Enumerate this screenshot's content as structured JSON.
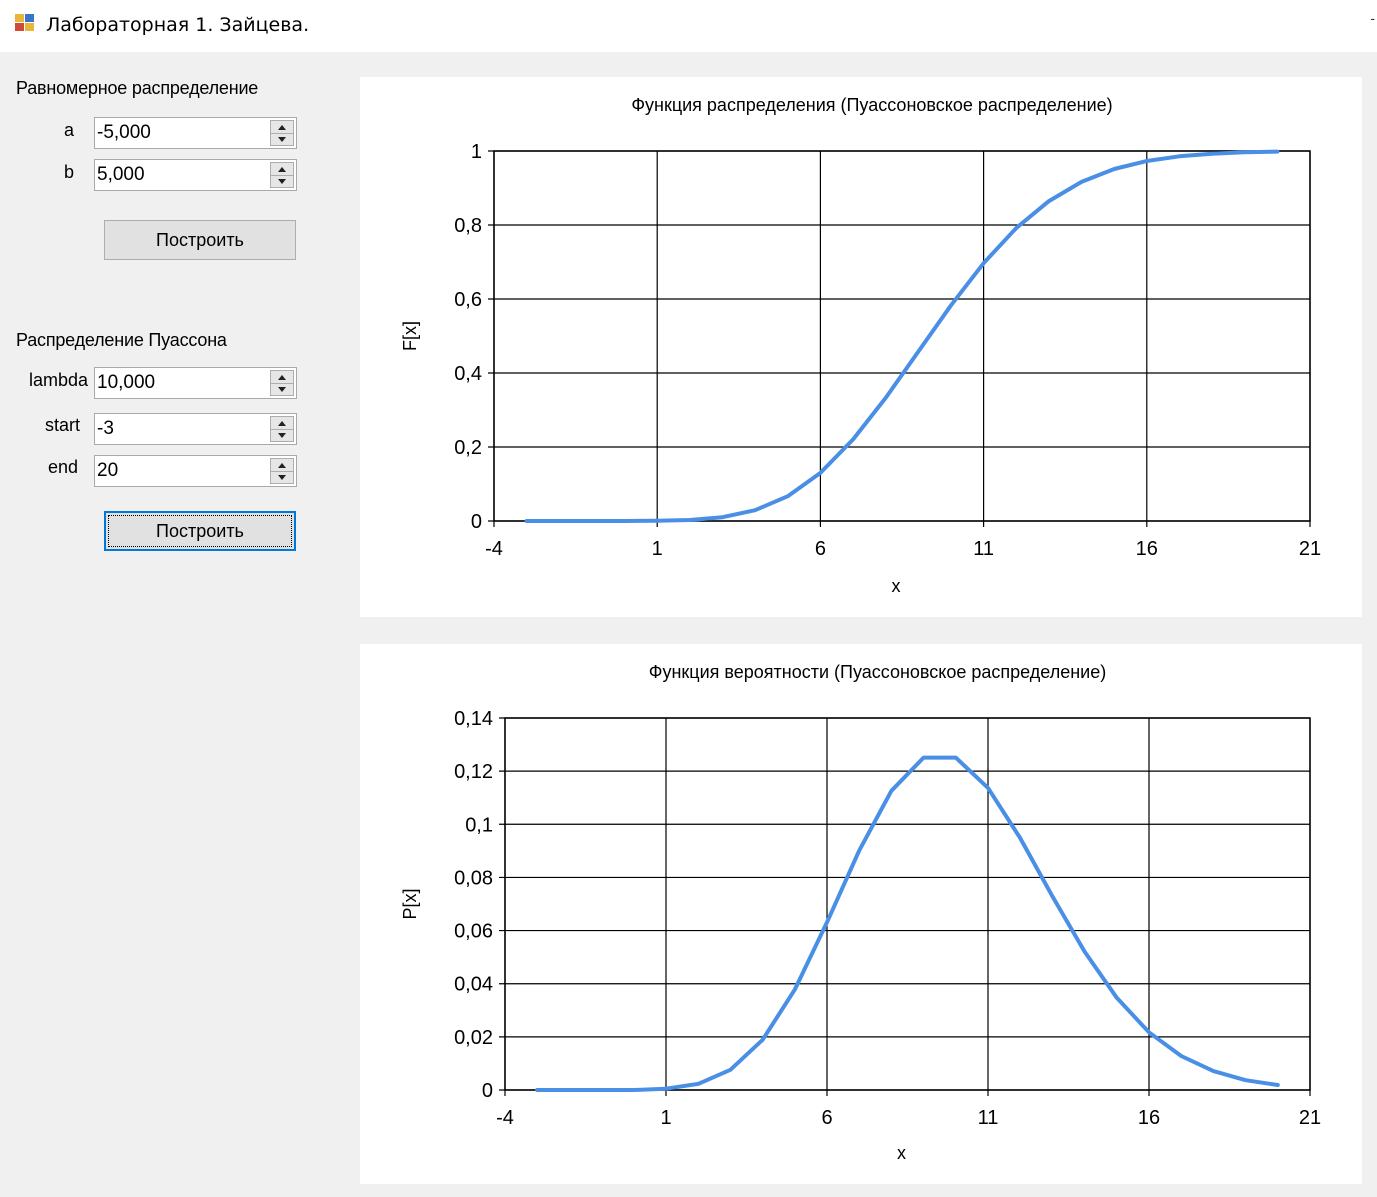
{
  "window": {
    "title": "Лабораторная 1. Зайцева.",
    "title_suffix": "-"
  },
  "uniform": {
    "group_label": "Равномерное распределение",
    "a_label": "a",
    "a_value": "-5,000",
    "b_label": "b",
    "b_value": "5,000",
    "build_button": "Построить"
  },
  "poisson": {
    "group_label": "Распределение Пуассона",
    "lambda_label": "lambda",
    "lambda_value": "10,000",
    "start_label": "start",
    "start_value": "-3",
    "end_label": "end",
    "end_value": "20",
    "build_button": "Построить"
  },
  "colors": {
    "series": "#4a8fe6",
    "grid": "#000000",
    "panel": "#ffffff",
    "background": "#f0f0f0"
  },
  "chart_data": [
    {
      "type": "line",
      "title": "Функция распределения (Пуассоновское распределение)",
      "xlabel": "x",
      "ylabel": "F[x]",
      "xlim": [
        -4,
        21
      ],
      "ylim": [
        0,
        1
      ],
      "x_ticks": [
        -4,
        1,
        6,
        11,
        16,
        21
      ],
      "x_tick_labels": [
        "-4",
        "1",
        "6",
        "11",
        "16",
        "21"
      ],
      "y_ticks": [
        0,
        0.2,
        0.4,
        0.6,
        0.8,
        1
      ],
      "y_tick_labels": [
        "0",
        "0,2",
        "0,4",
        "0,6",
        "0,8",
        "1"
      ],
      "grid": true,
      "series": [
        {
          "x": [
            -3,
            -2,
            -1,
            0,
            1,
            2,
            3,
            4,
            5,
            6,
            7,
            8,
            9,
            10,
            11,
            12,
            13,
            14,
            15,
            16,
            17,
            18,
            19,
            20
          ],
          "values": [
            0,
            0,
            0,
            0,
            0.0005,
            0.0028,
            0.0103,
            0.0293,
            0.0671,
            0.1301,
            0.2202,
            0.3328,
            0.4579,
            0.583,
            0.6968,
            0.7916,
            0.8645,
            0.9165,
            0.9513,
            0.973,
            0.9857,
            0.9928,
            0.9965,
            0.9984
          ]
        }
      ]
    },
    {
      "type": "line",
      "title": "Функция вероятности (Пуассоновское распределение)",
      "xlabel": "x",
      "ylabel": "P[x]",
      "xlim": [
        -4,
        21
      ],
      "ylim": [
        0,
        0.14
      ],
      "x_ticks": [
        -4,
        1,
        6,
        11,
        16,
        21
      ],
      "x_tick_labels": [
        "-4",
        "1",
        "6",
        "11",
        "16",
        "21"
      ],
      "y_ticks": [
        0,
        0.02,
        0.04,
        0.06,
        0.08,
        0.1,
        0.12,
        0.14
      ],
      "y_tick_labels": [
        "0",
        "0,02",
        "0,04",
        "0,06",
        "0,08",
        "0,1",
        "0,12",
        "0,14"
      ],
      "grid": true,
      "series": [
        {
          "x": [
            -3,
            -2,
            -1,
            0,
            1,
            2,
            3,
            4,
            5,
            6,
            7,
            8,
            9,
            10,
            11,
            12,
            13,
            14,
            15,
            16,
            17,
            18,
            19,
            20
          ],
          "values": [
            0,
            0,
            0,
            0,
            0.0005,
            0.0023,
            0.0076,
            0.0189,
            0.0378,
            0.0631,
            0.0901,
            0.1126,
            0.1251,
            0.1251,
            0.1137,
            0.0948,
            0.0729,
            0.0521,
            0.0347,
            0.0217,
            0.0128,
            0.0071,
            0.0037,
            0.0019
          ]
        }
      ]
    }
  ]
}
